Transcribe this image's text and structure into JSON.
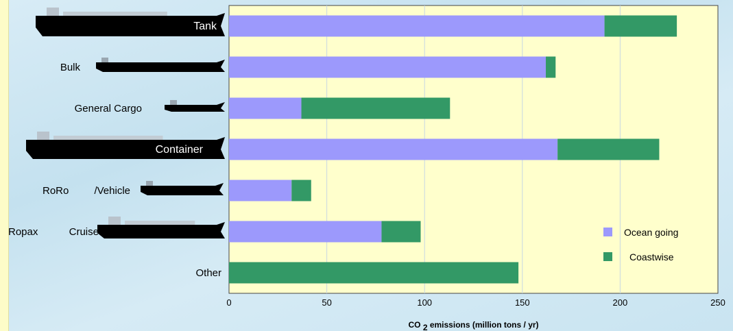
{
  "chart_data": {
    "type": "bar",
    "orientation": "horizontal",
    "stacked": true,
    "categories": [
      "Tank",
      "Bulk",
      "General Cargo",
      "Container",
      "RoRo /Vehicle",
      "Ropax Cruise",
      "Other"
    ],
    "category_display": [
      [
        "Tank"
      ],
      [
        "Bulk"
      ],
      [
        "General Cargo"
      ],
      [
        "Container"
      ],
      [
        "RoRo",
        "/Vehicle"
      ],
      [
        "Ropax",
        "Cruise"
      ],
      [
        "Other"
      ]
    ],
    "series": [
      {
        "name": "Ocean going",
        "color": "#9c99fc",
        "values": [
          192,
          162,
          37,
          168,
          32,
          78,
          0
        ]
      },
      {
        "name": "Coastwise",
        "color": "#339966",
        "values": [
          37,
          5,
          76,
          52,
          10,
          20,
          148
        ]
      }
    ],
    "xlim": [
      0,
      250
    ],
    "xticks": [
      "0",
      "50",
      "100",
      "150",
      "200",
      "250"
    ],
    "xlabel_parts": [
      "CO",
      "2",
      "emissions (million tons / yr)"
    ],
    "grid": true,
    "legend_position": "right",
    "plot_background": "#ffffcc",
    "icon_names": [
      "tanker-ship-icon",
      "bulk-carrier-icon",
      "general-cargo-ship-icon",
      "container-ship-icon",
      "roro-vehicle-carrier-icon",
      "cruise-ship-icon"
    ]
  }
}
